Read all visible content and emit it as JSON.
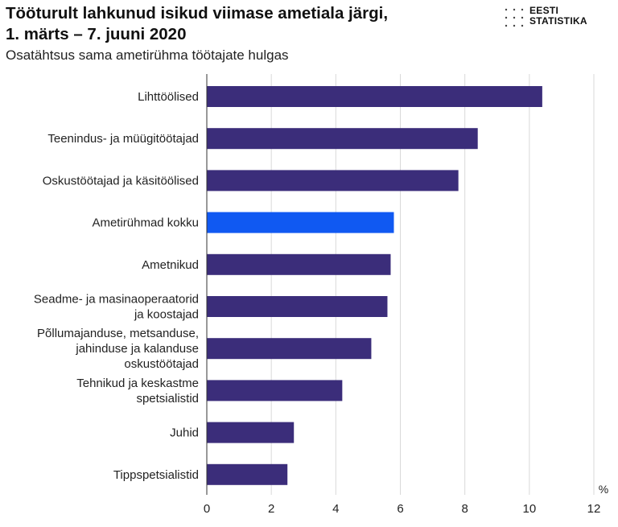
{
  "header": {
    "title_line1": "Tööturult lahkunud isikud viimase ametiala järgi,",
    "title_line2": "1. märts – 7. juuni 2020",
    "subtitle": "Osatähtsus sama ametirühma töötajate hulgas"
  },
  "logo": {
    "line1": "EESTI",
    "line2": "STATISTIKA"
  },
  "colors": {
    "bar": "#3b2d7a",
    "highlight": "#1059f2",
    "grid": "#d9d9d9",
    "axis": "#333333"
  },
  "chart_data": {
    "type": "bar",
    "orientation": "horizontal",
    "categories": [
      [
        "Lihttöölised"
      ],
      [
        "Teenindus- ja müügitöötajad"
      ],
      [
        "Oskustöötajad ja käsitöölised"
      ],
      [
        "Ametirühmad kokku"
      ],
      [
        "Ametnikud"
      ],
      [
        "Seadme- ja masinaoperaatorid",
        "ja koostajad"
      ],
      [
        "Põllumajanduse, metsanduse,",
        "jahinduse ja kalanduse",
        "oskustöötajad"
      ],
      [
        "Tehnikud ja keskastme",
        "spetsialistid"
      ],
      [
        "Juhid"
      ],
      [
        "Tippspetsialistid"
      ]
    ],
    "values": [
      10.4,
      8.4,
      7.8,
      5.8,
      5.7,
      5.6,
      5.1,
      4.2,
      2.7,
      2.5
    ],
    "highlight_index": 3,
    "xlim": [
      0,
      12
    ],
    "xticks": [
      "0",
      "2",
      "4",
      "6",
      "8",
      "10",
      "12"
    ],
    "xtick_values": [
      0,
      2,
      4,
      6,
      8,
      10,
      12
    ],
    "unit": "%",
    "grid": true
  }
}
